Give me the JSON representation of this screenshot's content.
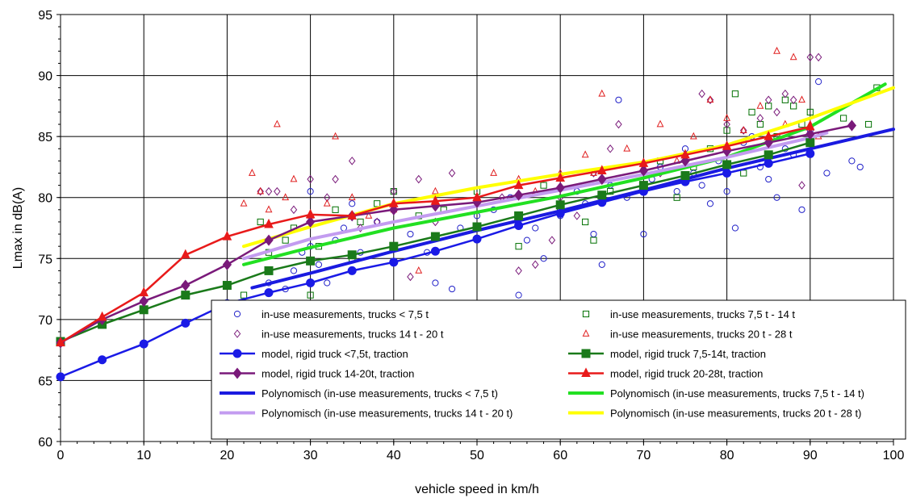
{
  "chart_data": {
    "type": "scatter",
    "xlabel": "vehicle speed in km/h",
    "ylabel": "Lmax in dB(A)",
    "xlim": [
      0,
      100
    ],
    "ylim": [
      60,
      95
    ],
    "xticks": [
      "0",
      "10",
      "20",
      "30",
      "40",
      "50",
      "60",
      "70",
      "80",
      "90",
      "100"
    ],
    "yticks": [
      "60",
      "65",
      "70",
      "75",
      "80",
      "85",
      "90",
      "95"
    ],
    "grid": true,
    "legend_position": "lower-right",
    "scatter_series": [
      {
        "name": "in-use measurements, trucks < 7,5 t",
        "marker": "circle",
        "color": "#2020c8",
        "points": [
          [
            25,
            73.0
          ],
          [
            27,
            72.5
          ],
          [
            28,
            74.0
          ],
          [
            29,
            75.5
          ],
          [
            30,
            80.5
          ],
          [
            30,
            76.0
          ],
          [
            31,
            74.5
          ],
          [
            32,
            73.0
          ],
          [
            33,
            76.5
          ],
          [
            34,
            77.5
          ],
          [
            35,
            79.5
          ],
          [
            35,
            74.0
          ],
          [
            36,
            75.5
          ],
          [
            38,
            78.0
          ],
          [
            40,
            76.0
          ],
          [
            42,
            77.0
          ],
          [
            44,
            75.5
          ],
          [
            45,
            73.0
          ],
          [
            47,
            72.5
          ],
          [
            48,
            77.5
          ],
          [
            50,
            78.5
          ],
          [
            52,
            79.0
          ],
          [
            54,
            80.0
          ],
          [
            55,
            72.0
          ],
          [
            56,
            76.5
          ],
          [
            57,
            77.5
          ],
          [
            58,
            75.0
          ],
          [
            60,
            78.5
          ],
          [
            62,
            80.5
          ],
          [
            63,
            79.5
          ],
          [
            64,
            77.0
          ],
          [
            65,
            74.5
          ],
          [
            66,
            81.0
          ],
          [
            67,
            88.0
          ],
          [
            68,
            80.0
          ],
          [
            70,
            77.0
          ],
          [
            71,
            81.5
          ],
          [
            72,
            82.5
          ],
          [
            74,
            80.5
          ],
          [
            75,
            84.0
          ],
          [
            76,
            82.0
          ],
          [
            77,
            81.0
          ],
          [
            78,
            79.5
          ],
          [
            79,
            83.0
          ],
          [
            80,
            80.5
          ],
          [
            81,
            77.5
          ],
          [
            82,
            84.5
          ],
          [
            83,
            85.0
          ],
          [
            84,
            82.5
          ],
          [
            85,
            81.5
          ],
          [
            86,
            80.0
          ],
          [
            87,
            84.0
          ],
          [
            88,
            83.5
          ],
          [
            89,
            79.0
          ],
          [
            90,
            85.5
          ],
          [
            91,
            89.5
          ],
          [
            92,
            82.0
          ],
          [
            95,
            83.0
          ],
          [
            96,
            82.5
          ]
        ]
      },
      {
        "name": "in-use measurements, trucks 7,5 t - 14 t",
        "marker": "square",
        "color": "#007000",
        "points": [
          [
            22,
            72.0
          ],
          [
            24,
            78.0
          ],
          [
            25,
            75.5
          ],
          [
            27,
            76.5
          ],
          [
            28,
            77.5
          ],
          [
            30,
            72.0
          ],
          [
            31,
            76.0
          ],
          [
            33,
            79.0
          ],
          [
            35,
            75.0
          ],
          [
            36,
            78.0
          ],
          [
            38,
            79.5
          ],
          [
            40,
            80.5
          ],
          [
            43,
            78.5
          ],
          [
            46,
            79.0
          ],
          [
            50,
            80.5
          ],
          [
            55,
            76.0
          ],
          [
            58,
            81.0
          ],
          [
            60,
            79.0
          ],
          [
            63,
            78.0
          ],
          [
            64,
            76.5
          ],
          [
            66,
            80.5
          ],
          [
            70,
            81.0
          ],
          [
            72,
            83.0
          ],
          [
            74,
            80.0
          ],
          [
            76,
            82.5
          ],
          [
            78,
            84.0
          ],
          [
            80,
            85.5
          ],
          [
            81,
            88.5
          ],
          [
            82,
            82.0
          ],
          [
            83,
            87.0
          ],
          [
            84,
            86.0
          ],
          [
            85,
            87.5
          ],
          [
            86,
            85.0
          ],
          [
            87,
            88.0
          ],
          [
            88,
            87.5
          ],
          [
            89,
            86.0
          ],
          [
            90,
            87.0
          ],
          [
            94,
            86.5
          ],
          [
            97,
            86.0
          ],
          [
            98,
            89.0
          ]
        ]
      },
      {
        "name": "in-use measurements, trucks 14 t - 20 t",
        "marker": "diamond",
        "color": "#7a1a7a",
        "points": [
          [
            24,
            80.5
          ],
          [
            25,
            80.5
          ],
          [
            26,
            80.5
          ],
          [
            28,
            79.0
          ],
          [
            30,
            81.5
          ],
          [
            32,
            80.0
          ],
          [
            33,
            81.5
          ],
          [
            35,
            83.0
          ],
          [
            36,
            77.5
          ],
          [
            38,
            78.0
          ],
          [
            40,
            80.5
          ],
          [
            42,
            73.5
          ],
          [
            43,
            81.5
          ],
          [
            45,
            78.0
          ],
          [
            47,
            82.0
          ],
          [
            50,
            79.5
          ],
          [
            53,
            80.0
          ],
          [
            55,
            74.0
          ],
          [
            57,
            74.5
          ],
          [
            59,
            76.5
          ],
          [
            60,
            80.0
          ],
          [
            62,
            78.5
          ],
          [
            64,
            82.0
          ],
          [
            66,
            84.0
          ],
          [
            67,
            86.0
          ],
          [
            70,
            80.5
          ],
          [
            72,
            82.0
          ],
          [
            75,
            83.5
          ],
          [
            77,
            88.5
          ],
          [
            78,
            88.0
          ],
          [
            80,
            86.0
          ],
          [
            82,
            85.5
          ],
          [
            84,
            86.5
          ],
          [
            85,
            88.0
          ],
          [
            86,
            87.0
          ],
          [
            87,
            88.5
          ],
          [
            88,
            88.0
          ],
          [
            89,
            81.0
          ],
          [
            90,
            91.5
          ],
          [
            91,
            91.5
          ]
        ]
      },
      {
        "name": "in-use measurements, trucks 20 t - 28 t",
        "marker": "triangle",
        "color": "#e02020",
        "points": [
          [
            22,
            79.5
          ],
          [
            23,
            82.0
          ],
          [
            24,
            80.5
          ],
          [
            25,
            79.0
          ],
          [
            26,
            86.0
          ],
          [
            27,
            80.0
          ],
          [
            28,
            81.5
          ],
          [
            30,
            78.5
          ],
          [
            32,
            79.5
          ],
          [
            33,
            85.0
          ],
          [
            35,
            80.0
          ],
          [
            37,
            78.5
          ],
          [
            40,
            79.0
          ],
          [
            43,
            74.0
          ],
          [
            45,
            80.5
          ],
          [
            50,
            80.0
          ],
          [
            52,
            82.0
          ],
          [
            55,
            81.5
          ],
          [
            57,
            80.5
          ],
          [
            60,
            82.0
          ],
          [
            63,
            83.5
          ],
          [
            64,
            82.0
          ],
          [
            65,
            88.5
          ],
          [
            68,
            84.0
          ],
          [
            70,
            82.5
          ],
          [
            72,
            86.0
          ],
          [
            74,
            83.0
          ],
          [
            76,
            85.0
          ],
          [
            78,
            88.0
          ],
          [
            80,
            86.5
          ],
          [
            82,
            85.5
          ],
          [
            84,
            87.5
          ],
          [
            86,
            92.0
          ],
          [
            87,
            86.0
          ],
          [
            88,
            91.5
          ],
          [
            89,
            88.0
          ],
          [
            90,
            86.0
          ],
          [
            91,
            85.0
          ]
        ]
      }
    ],
    "model_series": [
      {
        "name": "model, rigid truck <7,5t, traction",
        "marker": "circle",
        "color": "#1a1ae6",
        "points": [
          [
            0,
            65.3
          ],
          [
            5,
            66.7
          ],
          [
            10,
            68.0
          ],
          [
            15,
            69.7
          ],
          [
            20,
            71.3
          ],
          [
            25,
            72.2
          ],
          [
            30,
            73.0
          ],
          [
            35,
            74.0
          ],
          [
            40,
            74.7
          ],
          [
            45,
            75.6
          ],
          [
            50,
            76.6
          ],
          [
            55,
            77.7
          ],
          [
            60,
            78.7
          ],
          [
            65,
            79.6
          ],
          [
            70,
            80.5
          ],
          [
            75,
            81.3
          ],
          [
            80,
            82.0
          ],
          [
            85,
            82.8
          ],
          [
            90,
            83.6
          ]
        ]
      },
      {
        "name": "model, rigid truck 7,5-14t, traction",
        "marker": "square",
        "color": "#1a7a1a",
        "points": [
          [
            0,
            68.2
          ],
          [
            5,
            69.6
          ],
          [
            10,
            70.8
          ],
          [
            15,
            72.0
          ],
          [
            20,
            72.8
          ],
          [
            25,
            74.0
          ],
          [
            30,
            74.8
          ],
          [
            35,
            75.3
          ],
          [
            40,
            76.0
          ],
          [
            45,
            76.8
          ],
          [
            50,
            77.6
          ],
          [
            55,
            78.5
          ],
          [
            60,
            79.4
          ],
          [
            65,
            80.2
          ],
          [
            70,
            81.0
          ],
          [
            75,
            81.8
          ],
          [
            80,
            82.7
          ],
          [
            85,
            83.5
          ],
          [
            90,
            84.5
          ]
        ]
      },
      {
        "name": "model, rigid truck 14-20t, traction",
        "marker": "diamond",
        "color": "#7a1a7a",
        "points": [
          [
            0,
            68.1
          ],
          [
            5,
            70.0
          ],
          [
            10,
            71.5
          ],
          [
            15,
            72.8
          ],
          [
            20,
            74.5
          ],
          [
            25,
            76.5
          ],
          [
            30,
            78.0
          ],
          [
            35,
            78.5
          ],
          [
            40,
            79.0
          ],
          [
            45,
            79.3
          ],
          [
            50,
            79.6
          ],
          [
            55,
            80.2
          ],
          [
            60,
            80.8
          ],
          [
            65,
            81.5
          ],
          [
            70,
            82.2
          ],
          [
            75,
            83.0
          ],
          [
            80,
            83.8
          ],
          [
            85,
            84.5
          ],
          [
            90,
            85.2
          ],
          [
            95,
            85.9
          ]
        ]
      },
      {
        "name": "model, rigid truck 20-28t, traction",
        "marker": "triangle",
        "color": "#e81a1a",
        "points": [
          [
            0,
            68.1
          ],
          [
            5,
            70.2
          ],
          [
            10,
            72.2
          ],
          [
            15,
            75.3
          ],
          [
            20,
            76.8
          ],
          [
            25,
            77.8
          ],
          [
            30,
            78.6
          ],
          [
            35,
            78.5
          ],
          [
            40,
            79.5
          ],
          [
            45,
            79.7
          ],
          [
            50,
            80.0
          ],
          [
            55,
            81.0
          ],
          [
            60,
            81.6
          ],
          [
            65,
            82.2
          ],
          [
            70,
            82.8
          ],
          [
            75,
            83.5
          ],
          [
            80,
            84.2
          ],
          [
            85,
            85.0
          ],
          [
            90,
            85.8
          ]
        ]
      }
    ],
    "trend_series": [
      {
        "name": "Polynomisch (in-use measurements, trucks < 7,5 t)",
        "color": "#1a1ae0",
        "points": [
          [
            23,
            72.6
          ],
          [
            30,
            73.8
          ],
          [
            40,
            75.6
          ],
          [
            50,
            77.3
          ],
          [
            60,
            78.9
          ],
          [
            70,
            80.6
          ],
          [
            80,
            82.4
          ],
          [
            90,
            84.0
          ],
          [
            100,
            85.6
          ]
        ]
      },
      {
        "name": "Polynomisch (in-use measurements, trucks 7,5 t - 14 t)",
        "color": "#22e022",
        "points": [
          [
            22,
            74.5
          ],
          [
            30,
            75.9
          ],
          [
            40,
            77.5
          ],
          [
            50,
            78.8
          ],
          [
            60,
            80.1
          ],
          [
            70,
            81.6
          ],
          [
            80,
            83.3
          ],
          [
            90,
            85.8
          ],
          [
            99,
            89.3
          ]
        ]
      },
      {
        "name": "Polynomisch (in-use measurements, trucks 14 t - 20 t)",
        "color": "#c39cf0",
        "points": [
          [
            22,
            75.0
          ],
          [
            30,
            76.6
          ],
          [
            40,
            78.0
          ],
          [
            50,
            79.3
          ],
          [
            60,
            80.6
          ],
          [
            70,
            81.9
          ],
          [
            80,
            83.3
          ],
          [
            90,
            84.9
          ],
          [
            92,
            85.3
          ]
        ]
      },
      {
        "name": "Polynomisch (in-use measurements, trucks 20 t - 28 t)",
        "color": "#ffff00",
        "points": [
          [
            22,
            76.0
          ],
          [
            30,
            77.6
          ],
          [
            40,
            79.5
          ],
          [
            50,
            80.8
          ],
          [
            60,
            81.9
          ],
          [
            70,
            82.9
          ],
          [
            80,
            84.3
          ],
          [
            90,
            86.5
          ],
          [
            100,
            89.0
          ]
        ]
      }
    ]
  }
}
